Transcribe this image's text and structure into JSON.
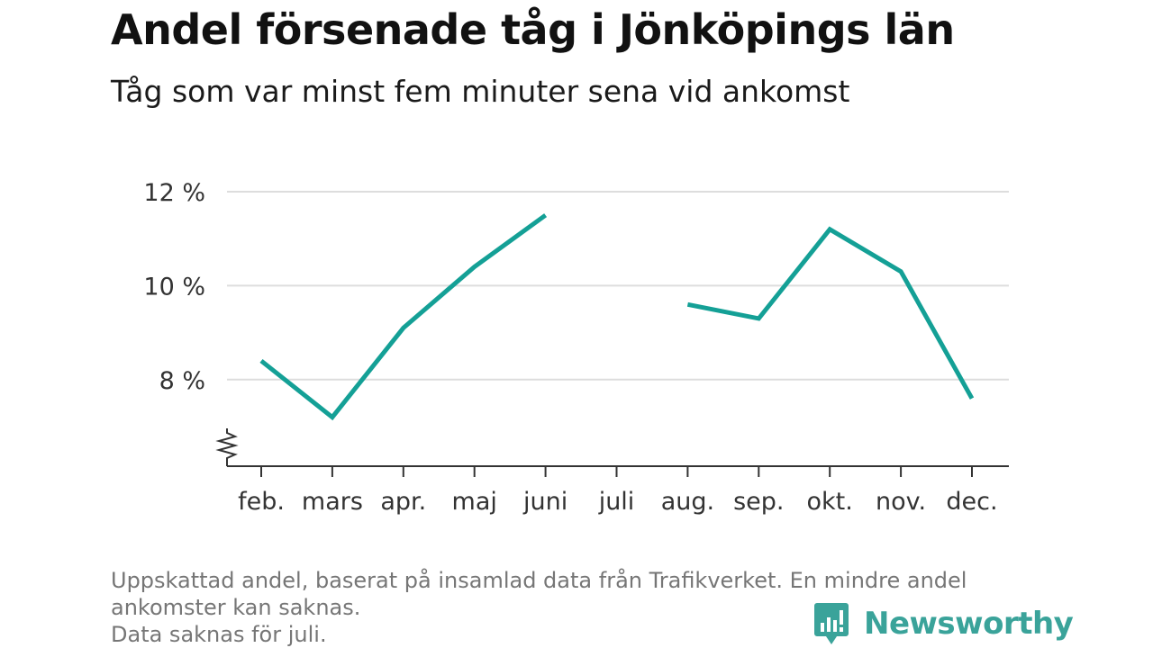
{
  "header": {
    "title": "Andel försenade tåg i Jönköpings län",
    "subtitle": "Tåg som var minst fem minuter sena vid ankomst"
  },
  "footer": {
    "note_lines": [
      "Uppskattad andel, baserat på insamlad data från Trafikverket. En mindre andel",
      "ankomster kan saknas.",
      "Data saknas för juli."
    ],
    "brand_name": "Newsworthy"
  },
  "colors": {
    "line": "#14a096",
    "grid": "#dddddd",
    "axis": "#333333",
    "brand": "#3aa39a"
  },
  "chart_data": {
    "type": "line",
    "title": "Andel försenade tåg i Jönköpings län",
    "subtitle": "Tåg som var minst fem minuter sena vid ankomst",
    "xlabel": "",
    "ylabel": "",
    "categories": [
      "feb.",
      "mars",
      "apr.",
      "maj",
      "juni",
      "juli",
      "aug.",
      "sep.",
      "okt.",
      "nov.",
      "dec."
    ],
    "series": [
      {
        "values": [
          8.4,
          7.2,
          9.1,
          10.4,
          11.5,
          null,
          9.6,
          9.3,
          11.2,
          10.3,
          7.6
        ]
      }
    ],
    "y_ticks": [
      8,
      10,
      12
    ],
    "y_tick_labels": [
      "8 %",
      "10 %",
      "12 %"
    ],
    "ylim": [
      6.2,
      12
    ],
    "y_axis_break": true,
    "grid": true,
    "legend": "none"
  }
}
